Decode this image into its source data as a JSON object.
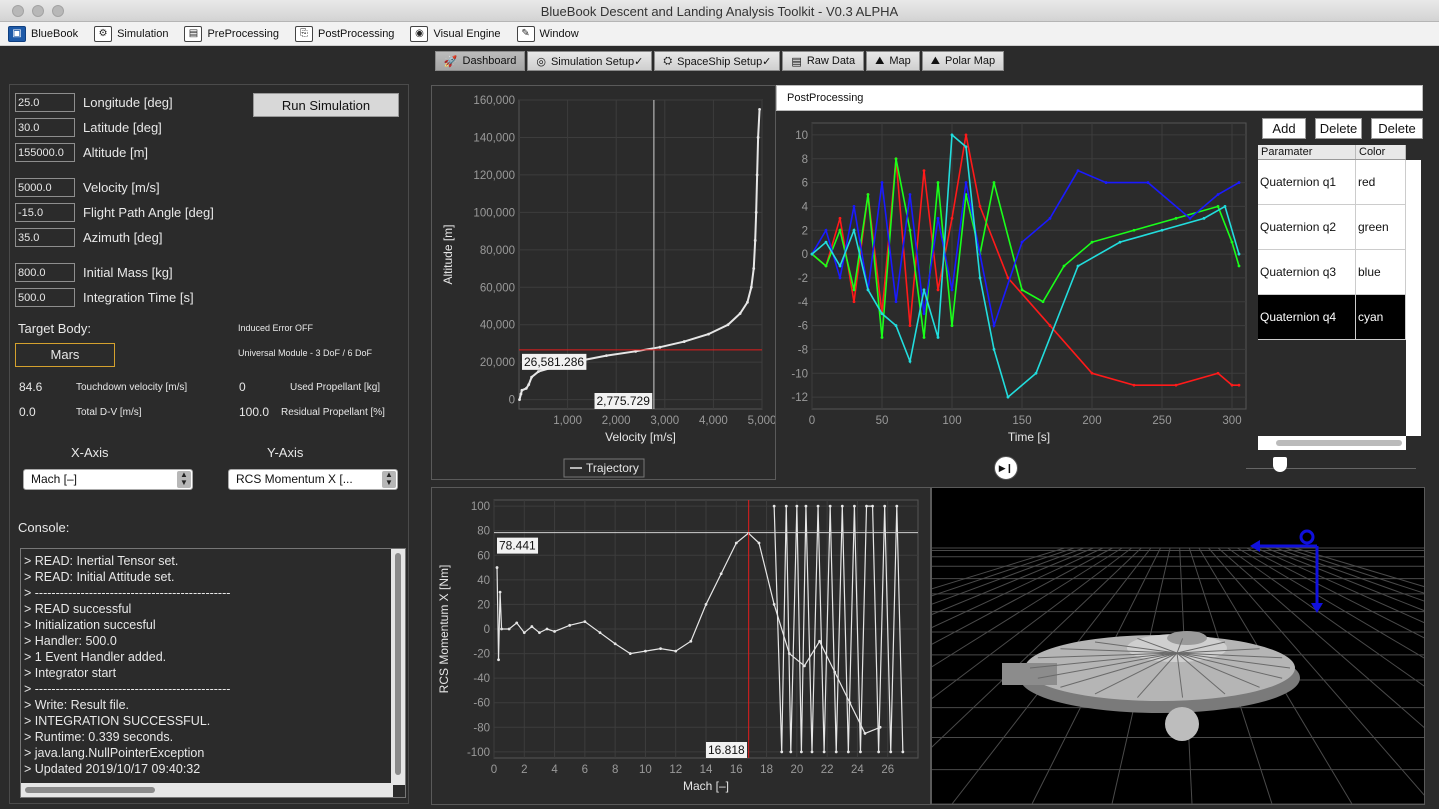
{
  "window": {
    "title": "BlueBook Descent and Landing Analysis Toolkit - V0.3 ALPHA"
  },
  "menubar": [
    {
      "label": "BlueBook",
      "icon": "bluebook-logo-icon"
    },
    {
      "label": "Simulation",
      "icon": "simulation-icon"
    },
    {
      "label": "PreProcessing",
      "icon": "preprocessing-icon"
    },
    {
      "label": "PostProcessing",
      "icon": "postprocessing-icon"
    },
    {
      "label": "Visual Engine",
      "icon": "visual-engine-icon"
    },
    {
      "label": "Window",
      "icon": "window-icon"
    }
  ],
  "tabs": [
    {
      "label": "Dashboard",
      "active": true
    },
    {
      "label": "Simulation Setup✓"
    },
    {
      "label": "SpaceShip Setup✓"
    },
    {
      "label": "Raw Data"
    },
    {
      "label": "Map"
    },
    {
      "label": "Polar Map"
    }
  ],
  "inputs": {
    "longitude": {
      "value": "25.0",
      "label": "Longitude [deg]"
    },
    "latitude": {
      "value": "30.0",
      "label": "Latitude [deg]"
    },
    "altitude": {
      "value": "155000.0",
      "label": "Altitude [m]"
    },
    "velocity": {
      "value": "5000.0",
      "label": "Velocity [m/s]"
    },
    "fpa": {
      "value": "-15.0",
      "label": "Flight Path Angle [deg]"
    },
    "azimuth": {
      "value": "35.0",
      "label": "Azimuth [deg]"
    },
    "mass": {
      "value": "800.0",
      "label": "Initial Mass [kg]"
    },
    "integ_time": {
      "value": "500.0",
      "label": "Integration Time [s]"
    }
  },
  "run_button": "Run Simulation",
  "target_body_label": "Target Body:",
  "target_body": "Mars",
  "induced_error": "Induced Error OFF",
  "universal_module": "Universal Module - 3 DoF / 6 DoF",
  "stats": {
    "touchdown_velocity": {
      "value": "84.6",
      "label": "Touchdown velocity [m/s]"
    },
    "used_propellant": {
      "value": "0",
      "label": "Used Propellant [kg]"
    },
    "total_dv": {
      "value": "0.0",
      "label": "Total D-V [m/s]"
    },
    "residual_propellant": {
      "value": "100.0",
      "label": "Residual Propellant [%]"
    }
  },
  "axis_select": {
    "x_label": "X-Axis",
    "y_label": "Y-Axis",
    "x_value": "Mach [–]",
    "y_value": "RCS Momentum X [..."
  },
  "console": {
    "label": "Console:",
    "lines": [
      "> READ: Inertial Tensor set.",
      "> READ: Initial Attitude set.",
      "> -----------------------------------------------",
      "> READ successful",
      "> Initialization succesful",
      "> Handler: 500.0",
      "> 1 Event Handler added.",
      "> Integrator start",
      "> -----------------------------------------------",
      "> Write: Result file.",
      "> INTEGRATION SUCCESSFUL.",
      "> Runtime: 0.339 seconds.",
      "> java.lang.NullPointerException",
      "> Updated 2019/10/17 09:40:32"
    ]
  },
  "postprocessing": {
    "header": "PostProcessing",
    "buttons": [
      "Add",
      "Delete",
      "Delete"
    ],
    "table_headers": [
      "Paramater",
      "Color"
    ],
    "rows": [
      {
        "param": "Quaternion q1",
        "color": "red"
      },
      {
        "param": "Quaternion q2",
        "color": "green"
      },
      {
        "param": "Quaternion q3",
        "color": "blue"
      },
      {
        "param": "Quaternion q4",
        "color": "cyan",
        "selected": true
      }
    ]
  },
  "chart_data": [
    {
      "id": "trajectory",
      "type": "line",
      "xlabel": "Velocity [m/s]",
      "ylabel": "Altitude [m]",
      "xlim": [
        0,
        5000
      ],
      "ylim": [
        -5000,
        160000
      ],
      "xticks": [
        "1,000",
        "2,000",
        "3,000",
        "4,000",
        "5,000"
      ],
      "yticks": [
        "0",
        "20,000",
        "40,000",
        "60,000",
        "80,000",
        "100,000",
        "120,000",
        "140,000",
        "160,000"
      ],
      "legend": "Trajectory",
      "crosshair": {
        "x": 2775.729,
        "y": 26581.286,
        "x_label": "2,775.729",
        "y_label": "26,581.286"
      },
      "series": [
        {
          "name": "Trajectory",
          "color": "#e6e6e6",
          "x": [
            10,
            40,
            60,
            150,
            200,
            260,
            400,
            800,
            1200,
            1800,
            2400,
            2900,
            3400,
            3900,
            4300,
            4550,
            4700,
            4780,
            4830,
            4860,
            4880,
            4900,
            4920,
            4950
          ],
          "y": [
            0,
            3000,
            5000,
            6000,
            8000,
            12000,
            15000,
            18000,
            20500,
            23500,
            25800,
            28000,
            31000,
            35000,
            40000,
            46000,
            52000,
            60000,
            70000,
            85000,
            100000,
            120000,
            140000,
            155000
          ]
        }
      ]
    },
    {
      "id": "quaternions",
      "type": "line",
      "xlabel": "Time [s]",
      "ylabel": "",
      "xlim": [
        0,
        310
      ],
      "ylim": [
        -13,
        11
      ],
      "xticks": [
        "0",
        "50",
        "100",
        "150",
        "200",
        "250",
        "300"
      ],
      "yticks": [
        "-12",
        "-10",
        "-8",
        "-6",
        "-4",
        "-2",
        "0",
        "2",
        "4",
        "6",
        "8",
        "10"
      ],
      "series": [
        {
          "name": "Quaternion q1",
          "color": "#ff1a1a",
          "x": [
            0,
            10,
            20,
            30,
            40,
            50,
            60,
            70,
            80,
            90,
            100,
            110,
            120,
            140,
            170,
            200,
            230,
            260,
            290,
            300,
            305
          ],
          "y": [
            0,
            -1,
            3,
            -4,
            5,
            -5,
            8,
            -6,
            7,
            -3,
            3,
            10,
            4,
            -2,
            -6,
            -10,
            -11,
            -11,
            -10,
            -11,
            -11
          ]
        },
        {
          "name": "Quaternion q2",
          "color": "#1aff1a",
          "x": [
            0,
            10,
            20,
            30,
            40,
            50,
            60,
            70,
            80,
            90,
            100,
            110,
            120,
            130,
            150,
            165,
            180,
            200,
            230,
            260,
            290,
            300,
            305
          ],
          "y": [
            0,
            -1,
            2,
            -3,
            5,
            -7,
            8,
            2,
            -7,
            6,
            -6,
            5,
            0,
            6,
            -3,
            -4,
            -1,
            1,
            2,
            3,
            4,
            1,
            -1
          ]
        },
        {
          "name": "Quaternion q3",
          "color": "#1a1aff",
          "x": [
            0,
            10,
            20,
            30,
            40,
            50,
            60,
            70,
            80,
            90,
            100,
            110,
            130,
            150,
            170,
            190,
            210,
            240,
            270,
            290,
            305
          ],
          "y": [
            0,
            2,
            -2,
            4,
            -3,
            6,
            -4,
            5,
            -5,
            3,
            -3,
            6,
            -6,
            1,
            3,
            7,
            6,
            6,
            3,
            5,
            6
          ]
        },
        {
          "name": "Quaternion q4",
          "color": "#22dddd",
          "x": [
            0,
            10,
            20,
            30,
            40,
            50,
            60,
            70,
            80,
            90,
            100,
            110,
            120,
            130,
            140,
            160,
            190,
            220,
            250,
            280,
            295,
            305
          ],
          "y": [
            0,
            1,
            -1,
            2,
            -3,
            -5,
            -6,
            -9,
            -3,
            -7,
            10,
            9,
            -2,
            -8,
            -12,
            -10,
            -1,
            1,
            2,
            3,
            4,
            0
          ]
        }
      ]
    },
    {
      "id": "rcs",
      "type": "line",
      "xlabel": "Mach [–]",
      "ylabel": "RCS Momentum X [Nm]",
      "xlim": [
        0,
        28
      ],
      "ylim": [
        -105,
        105
      ],
      "xticks": [
        "0",
        "2",
        "4",
        "6",
        "8",
        "10",
        "12",
        "14",
        "16",
        "18",
        "20",
        "22",
        "24",
        "26"
      ],
      "yticks": [
        "-100",
        "-80",
        "-60",
        "-40",
        "-20",
        "0",
        "20",
        "40",
        "60",
        "80",
        "100"
      ],
      "crosshair": {
        "x": 16.818,
        "y": 78.441,
        "x_label": "16.818",
        "y_label": "78.441"
      },
      "series": [
        {
          "name": "RCS Momentum X",
          "color": "#e6e6e6",
          "x": [
            0.2,
            0.3,
            0.4,
            0.5,
            1,
            1.5,
            2,
            2.5,
            3,
            3.5,
            4,
            5,
            6,
            7,
            8,
            9,
            10,
            11,
            12,
            13,
            14,
            15,
            16,
            16.8,
            17.5,
            18.5,
            19.5,
            20.5,
            21.5,
            22.5,
            23.5,
            24.5,
            25.5
          ],
          "y": [
            50,
            -25,
            30,
            0,
            0,
            5,
            -3,
            2,
            -3,
            0,
            -2,
            3,
            6,
            -3,
            -12,
            -20,
            -18,
            -16,
            -18,
            -10,
            20,
            45,
            70,
            78,
            70,
            20,
            -20,
            -30,
            -10,
            -35,
            -60,
            -85,
            -80
          ]
        },
        {
          "name": "RCS Momentum X oscillation",
          "color": "#e6e6e6",
          "x": [
            18.5,
            19,
            19.3,
            19.6,
            20,
            20.3,
            20.6,
            21,
            21.4,
            21.8,
            22.2,
            22.6,
            23,
            23.4,
            23.8,
            24.2,
            24.6,
            25,
            25.4,
            25.8,
            26.2,
            26.6,
            27
          ],
          "y": [
            100,
            -100,
            100,
            -100,
            100,
            -100,
            100,
            -100,
            100,
            -100,
            100,
            -100,
            100,
            -100,
            100,
            -100,
            100,
            100,
            -100,
            100,
            -100,
            100,
            -100
          ]
        }
      ]
    }
  ]
}
